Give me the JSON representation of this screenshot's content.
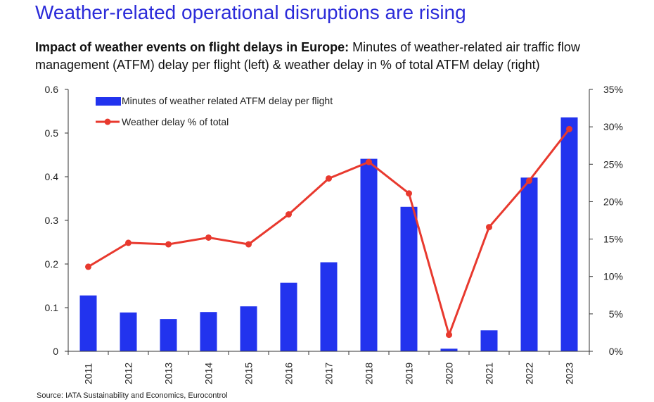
{
  "header": {
    "title": "Weather-related operational disruptions are rising",
    "subtitle_bold": "Impact of weather events on flight delays in Europe:",
    "subtitle_rest": " Minutes of weather-related air traffic flow management (ATFM) delay per flight (left) & weather delay in % of total ATFM delay (right)"
  },
  "source": "Source: IATA Sustainability and Economics, Eurocontrol",
  "colors": {
    "bar": "#2233ee",
    "line": "#e8392e",
    "axis": "#333333",
    "title": "#2b2bd9"
  },
  "chart_data": {
    "type": "bar+line",
    "categories": [
      "2011",
      "2012",
      "2013",
      "2014",
      "2015",
      "2016",
      "2017",
      "2018",
      "2019",
      "2020",
      "2021",
      "2022",
      "2023"
    ],
    "series": [
      {
        "name": "Minutes of weather related ATFM delay per flight",
        "type": "bar",
        "axis": "left",
        "values": [
          0.128,
          0.089,
          0.074,
          0.09,
          0.103,
          0.157,
          0.204,
          0.441,
          0.331,
          0.006,
          0.048,
          0.398,
          0.536
        ]
      },
      {
        "name": "Weather delay % of total",
        "type": "line",
        "axis": "right",
        "values": [
          11.3,
          14.5,
          14.3,
          15.2,
          14.3,
          18.3,
          23.1,
          25.3,
          21.1,
          2.2,
          16.6,
          22.8,
          29.7
        ]
      }
    ],
    "left_axis": {
      "ylim": [
        0,
        0.6
      ],
      "ticks": [
        "0",
        "0.1",
        "0.2",
        "0.3",
        "0.4",
        "0.5",
        "0.6"
      ]
    },
    "right_axis": {
      "ylim": [
        0,
        35
      ],
      "ticks": [
        "0%",
        "5%",
        "10%",
        "15%",
        "20%",
        "25%",
        "30%",
        "35%"
      ]
    },
    "legend": [
      "Minutes of weather related ATFM delay per flight",
      "Weather delay % of total"
    ],
    "legend_position": "top-left"
  }
}
